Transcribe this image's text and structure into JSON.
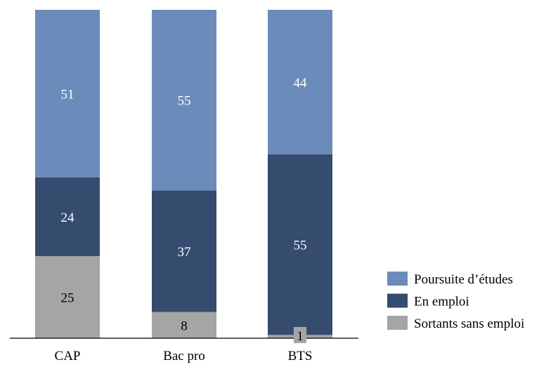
{
  "chart_data": {
    "type": "bar",
    "stacked": true,
    "categories": [
      "CAP",
      "Bac pro",
      "BTS"
    ],
    "series": [
      {
        "name": "Sortants sans emploi",
        "values": [
          25,
          8,
          1
        ],
        "color": "#a5a5a5",
        "label_color": "#000000"
      },
      {
        "name": "En emploi",
        "values": [
          24,
          37,
          55
        ],
        "color": "#364c6e",
        "label_color": "#ffffff"
      },
      {
        "name": "Poursuite d’études",
        "values": [
          51,
          55,
          44
        ],
        "color": "#6b8cba",
        "label_color": "#ffffff"
      }
    ],
    "legend_order": [
      "Poursuite d’études",
      "En emploi",
      "Sortants sans emploi"
    ],
    "ylim": [
      0,
      100
    ],
    "grid": false,
    "legend_position": "right",
    "title": "",
    "xlabel": "",
    "ylabel": ""
  }
}
